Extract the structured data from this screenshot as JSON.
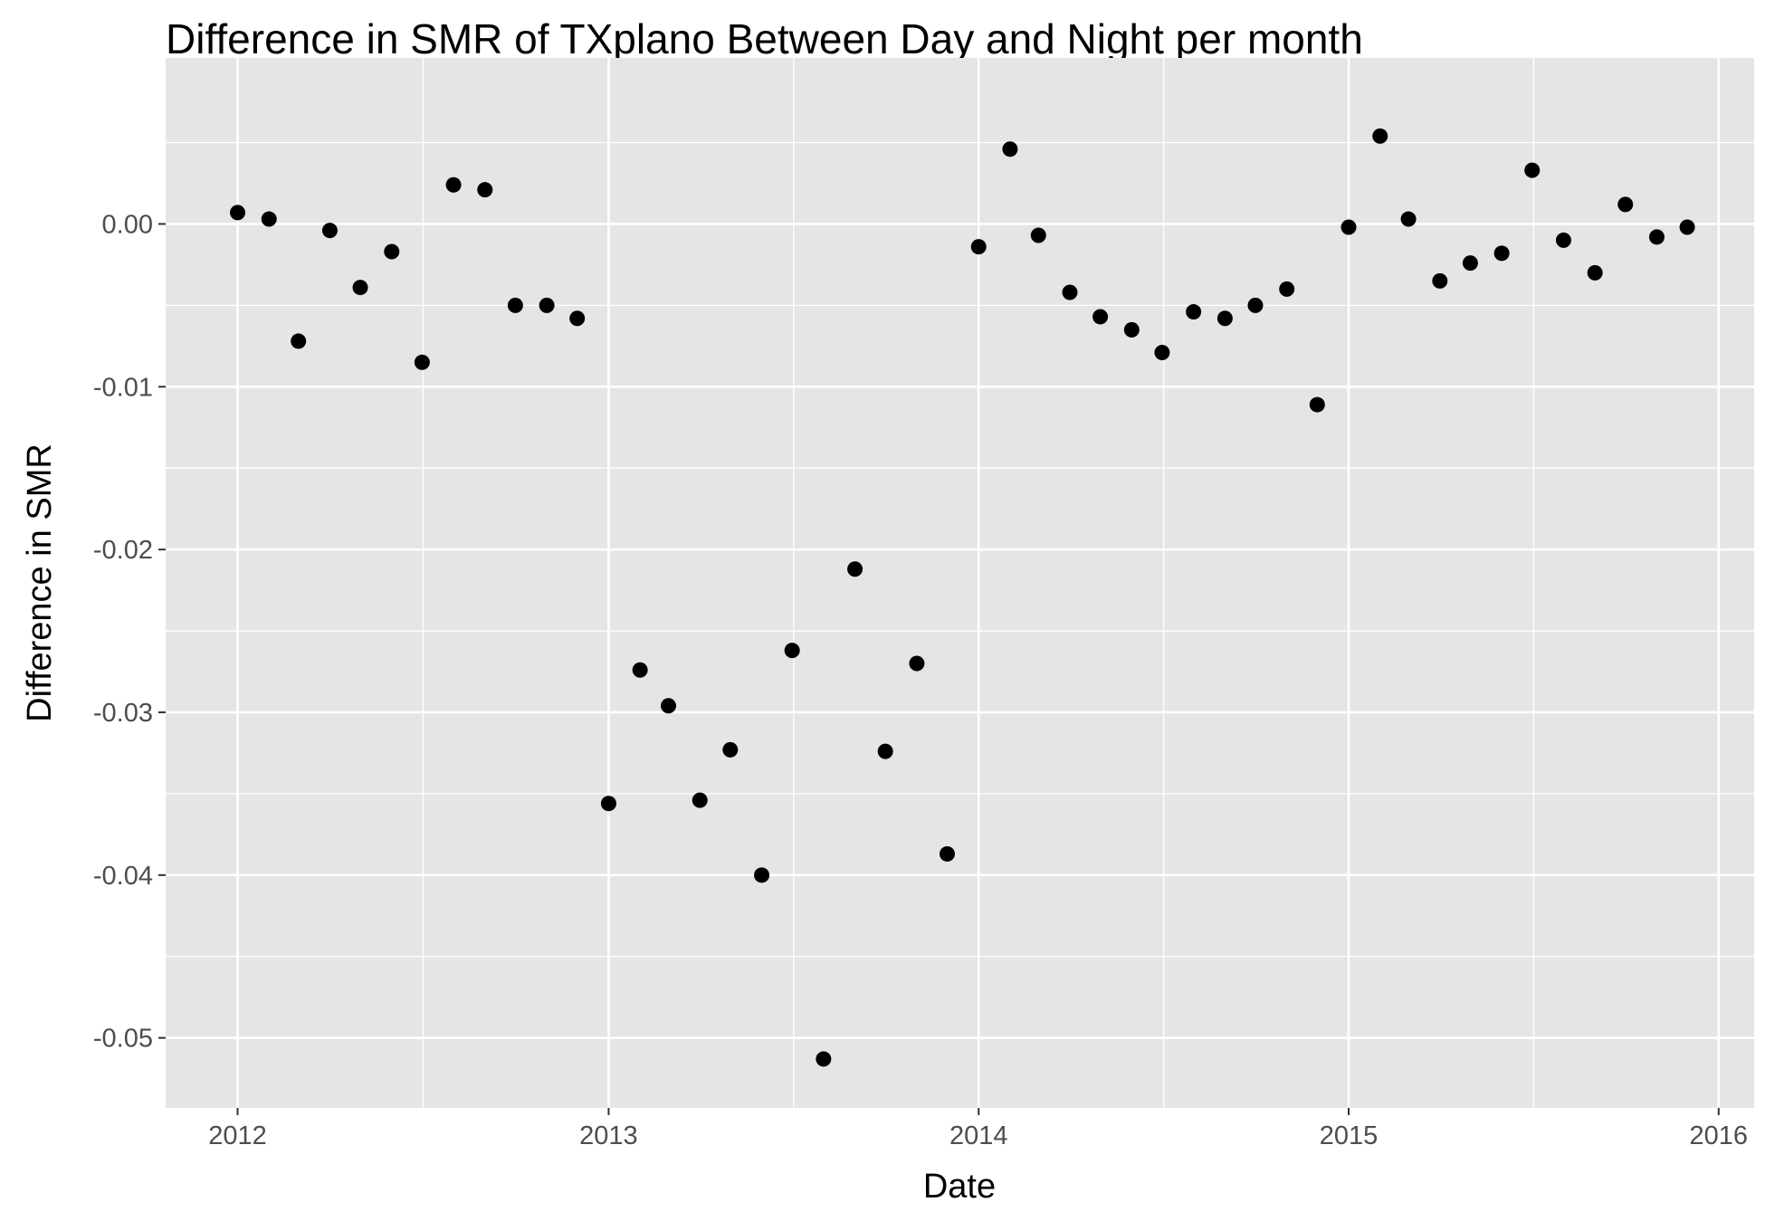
{
  "chart_data": {
    "type": "scatter",
    "title": "Difference in SMR of TXplano Between Day and Night per month",
    "xlabel": "Date",
    "ylabel": "Difference in SMR",
    "x_ticks": [
      "2012",
      "2013",
      "2014",
      "2015",
      "2016"
    ],
    "y_ticks": [
      0.0,
      -0.01,
      -0.02,
      -0.03,
      -0.04,
      -0.05
    ],
    "y_tick_labels": [
      "0.00",
      "-0.01",
      "-0.02",
      "-0.03",
      "-0.04",
      "-0.05"
    ],
    "xlim": [
      "2011-10-22",
      "2016-02-05"
    ],
    "ylim": [
      -0.0543,
      0.0102
    ],
    "grid": true,
    "background": "#e5e5e5",
    "grid_color": "#ffffff",
    "point_color": "#000000",
    "points": [
      {
        "x": "2012-01-01",
        "y": 0.0007
      },
      {
        "x": "2012-02-01",
        "y": 0.0003
      },
      {
        "x": "2012-03-01",
        "y": -0.0072
      },
      {
        "x": "2012-04-01",
        "y": -0.0004
      },
      {
        "x": "2012-05-01",
        "y": -0.0039
      },
      {
        "x": "2012-06-01",
        "y": -0.0017
      },
      {
        "x": "2012-07-01",
        "y": -0.0085
      },
      {
        "x": "2012-08-01",
        "y": 0.0024
      },
      {
        "x": "2012-09-01",
        "y": 0.0021
      },
      {
        "x": "2012-10-01",
        "y": -0.005
      },
      {
        "x": "2012-11-01",
        "y": -0.005
      },
      {
        "x": "2012-12-01",
        "y": -0.0058
      },
      {
        "x": "2013-01-01",
        "y": -0.0356
      },
      {
        "x": "2013-02-01",
        "y": -0.0274
      },
      {
        "x": "2013-03-01",
        "y": -0.0296
      },
      {
        "x": "2013-04-01",
        "y": -0.0354
      },
      {
        "x": "2013-05-01",
        "y": -0.0323
      },
      {
        "x": "2013-06-01",
        "y": -0.04
      },
      {
        "x": "2013-07-01",
        "y": -0.0262
      },
      {
        "x": "2013-08-01",
        "y": -0.0513
      },
      {
        "x": "2013-09-01",
        "y": -0.0212
      },
      {
        "x": "2013-10-01",
        "y": -0.0324
      },
      {
        "x": "2013-11-01",
        "y": -0.027
      },
      {
        "x": "2013-12-01",
        "y": -0.0387
      },
      {
        "x": "2014-01-01",
        "y": -0.0014
      },
      {
        "x": "2014-02-01",
        "y": 0.0046
      },
      {
        "x": "2014-03-01",
        "y": -0.0007
      },
      {
        "x": "2014-04-01",
        "y": -0.0042
      },
      {
        "x": "2014-05-01",
        "y": -0.0057
      },
      {
        "x": "2014-06-01",
        "y": -0.0065
      },
      {
        "x": "2014-07-01",
        "y": -0.0079
      },
      {
        "x": "2014-08-01",
        "y": -0.0054
      },
      {
        "x": "2014-09-01",
        "y": -0.0058
      },
      {
        "x": "2014-10-01",
        "y": -0.005
      },
      {
        "x": "2014-11-01",
        "y": -0.004
      },
      {
        "x": "2014-12-01",
        "y": -0.0111
      },
      {
        "x": "2015-01-01",
        "y": -0.0002
      },
      {
        "x": "2015-02-01",
        "y": 0.0054
      },
      {
        "x": "2015-03-01",
        "y": 0.0003
      },
      {
        "x": "2015-04-01",
        "y": -0.0035
      },
      {
        "x": "2015-05-01",
        "y": -0.0024
      },
      {
        "x": "2015-06-01",
        "y": -0.0018
      },
      {
        "x": "2015-07-01",
        "y": 0.0033
      },
      {
        "x": "2015-08-01",
        "y": -0.001
      },
      {
        "x": "2015-09-01",
        "y": -0.003
      },
      {
        "x": "2015-10-01",
        "y": 0.0012
      },
      {
        "x": "2015-11-01",
        "y": -0.0008
      },
      {
        "x": "2015-12-01",
        "y": -0.0002
      }
    ]
  }
}
